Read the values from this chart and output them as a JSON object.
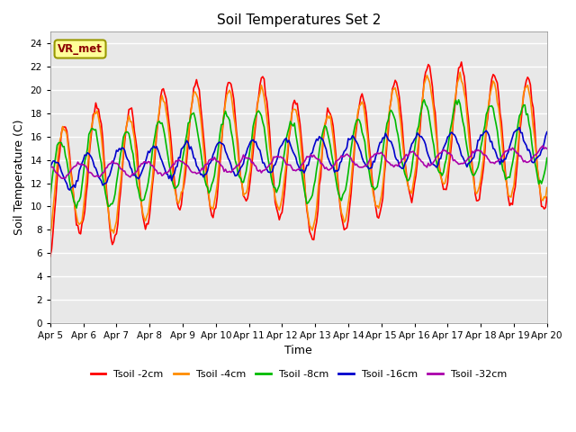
{
  "title": "Soil Temperatures Set 2",
  "xlabel": "Time",
  "ylabel": "Soil Temperature (C)",
  "ylim": [
    0,
    25
  ],
  "yticks": [
    0,
    2,
    4,
    6,
    8,
    10,
    12,
    14,
    16,
    18,
    20,
    22,
    24
  ],
  "x_labels": [
    "Apr 5",
    "Apr 6",
    "Apr 7",
    "Apr 8",
    "Apr 9",
    "Apr 10",
    "Apr 11",
    "Apr 12",
    "Apr 13",
    "Apr 14",
    "Apr 15",
    "Apr 16",
    "Apr 17",
    "Apr 18",
    "Apr 19",
    "Apr 20"
  ],
  "bg_color": "#e8e8e8",
  "fig_color": "#ffffff",
  "annotation_text": "VR_met",
  "annotation_bg": "#ffff99",
  "annotation_border": "#999900",
  "series": [
    {
      "label": "Tsoil -2cm",
      "color": "#ff0000"
    },
    {
      "label": "Tsoil -4cm",
      "color": "#ff8c00"
    },
    {
      "label": "Tsoil -8cm",
      "color": "#00bb00"
    },
    {
      "label": "Tsoil -16cm",
      "color": "#0000cc"
    },
    {
      "label": "Tsoil -32cm",
      "color": "#aa00aa"
    }
  ]
}
